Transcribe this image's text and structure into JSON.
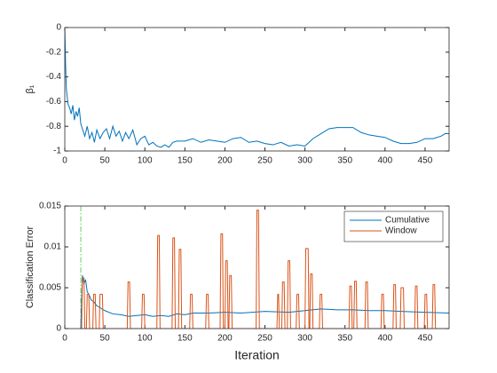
{
  "chart_data": [
    {
      "type": "line",
      "ylabel": "β₁",
      "color": "#0072bd",
      "x": [
        0,
        1,
        2,
        4,
        6,
        8,
        10,
        12,
        14,
        16,
        18,
        20,
        22,
        25,
        28,
        31,
        34,
        37,
        40,
        44,
        48,
        52,
        56,
        60,
        64,
        68,
        72,
        76,
        80,
        85,
        90,
        95,
        100,
        105,
        110,
        115,
        120,
        125,
        130,
        135,
        140,
        150,
        160,
        170,
        180,
        190,
        200,
        210,
        220,
        230,
        240,
        250,
        260,
        270,
        280,
        290,
        300,
        310,
        320,
        330,
        340,
        350,
        360,
        370,
        380,
        390,
        400,
        410,
        420,
        430,
        440,
        450,
        460,
        470,
        475,
        480
      ],
      "values": [
        0,
        -0.3,
        -0.5,
        -0.62,
        -0.65,
        -0.7,
        -0.63,
        -0.75,
        -0.68,
        -0.72,
        -0.65,
        -0.78,
        -0.82,
        -0.88,
        -0.8,
        -0.9,
        -0.85,
        -0.93,
        -0.83,
        -0.9,
        -0.85,
        -0.82,
        -0.9,
        -0.8,
        -0.88,
        -0.84,
        -0.92,
        -0.85,
        -0.9,
        -0.83,
        -0.95,
        -0.9,
        -0.88,
        -0.95,
        -0.93,
        -0.96,
        -0.97,
        -0.95,
        -0.97,
        -0.93,
        -0.92,
        -0.92,
        -0.9,
        -0.93,
        -0.91,
        -0.92,
        -0.93,
        -0.9,
        -0.89,
        -0.93,
        -0.92,
        -0.94,
        -0.95,
        -0.93,
        -0.96,
        -0.95,
        -0.96,
        -0.9,
        -0.86,
        -0.82,
        -0.81,
        -0.81,
        -0.81,
        -0.85,
        -0.87,
        -0.88,
        -0.89,
        -0.92,
        -0.94,
        -0.94,
        -0.93,
        -0.9,
        -0.9,
        -0.88,
        -0.86,
        -0.86
      ],
      "xlim": [
        0,
        480
      ],
      "ylim": [
        -1,
        0
      ],
      "xticks": [
        0,
        50,
        100,
        150,
        200,
        250,
        300,
        350,
        400,
        450
      ],
      "yticks": [
        -1,
        -0.8,
        -0.6,
        -0.4,
        -0.2,
        0
      ]
    },
    {
      "type": "line",
      "xlabel": "Iteration",
      "ylabel": "Classification Error",
      "xlim": [
        0,
        480
      ],
      "ylim": [
        0,
        0.015
      ],
      "xticks": [
        0,
        50,
        100,
        150,
        200,
        250,
        300,
        350,
        400,
        450
      ],
      "yticks": [
        0,
        0.005,
        0.01,
        0.015
      ],
      "vline": 20,
      "vline_color": "#5fd35f",
      "legend": "northeast",
      "series": [
        {
          "name": "Cumulative",
          "color": "#0072bd",
          "x": [
            20,
            22,
            24,
            26,
            28,
            30,
            33,
            36,
            40,
            45,
            50,
            60,
            70,
            80,
            90,
            100,
            110,
            120,
            130,
            140,
            150,
            160,
            180,
            200,
            220,
            250,
            280,
            300,
            320,
            340,
            360,
            380,
            400,
            420,
            450,
            480
          ],
          "values": [
            0,
            0.0065,
            0.0055,
            0.006,
            0.0045,
            0.0042,
            0.0035,
            0.0033,
            0.0028,
            0.0025,
            0.0022,
            0.0018,
            0.0017,
            0.0015,
            0.0016,
            0.0017,
            0.0015,
            0.0016,
            0.0015,
            0.0018,
            0.0017,
            0.0019,
            0.0019,
            0.002,
            0.0019,
            0.0021,
            0.002,
            0.0022,
            0.0024,
            0.0023,
            0.0023,
            0.0022,
            0.0022,
            0.0021,
            0.002,
            0.0019
          ]
        },
        {
          "name": "Window",
          "color": "#d95319",
          "x": [
            20,
            21,
            22,
            24,
            25,
            27,
            28,
            30,
            31,
            35,
            36,
            38,
            39,
            43,
            44,
            47,
            48,
            78,
            79,
            81,
            82,
            96,
            97,
            99,
            100,
            115,
            116,
            118,
            119,
            134,
            135,
            137,
            138,
            142,
            143,
            145,
            146,
            156,
            157,
            159,
            160,
            176,
            177,
            179,
            180,
            194,
            195,
            197,
            198,
            200,
            201,
            203,
            204,
            205,
            206,
            208,
            209,
            239,
            240,
            242,
            243,
            265,
            266,
            267,
            268,
            271,
            272,
            274,
            275,
            278,
            279,
            281,
            282,
            289,
            290,
            292,
            293,
            300,
            301,
            304,
            305,
            306,
            307,
            309,
            310,
            318,
            319,
            321,
            322,
            355,
            356,
            358,
            359,
            361,
            362,
            364,
            365,
            375,
            376,
            378,
            379,
            395,
            396,
            398,
            399,
            410,
            411,
            413,
            414,
            419,
            420,
            423,
            424,
            437,
            438,
            440,
            441,
            449,
            450,
            452,
            453,
            459,
            460,
            462,
            463,
            480
          ],
          "values": [
            0,
            0,
            0.0062,
            0.0062,
            0,
            0,
            0.0042,
            0.0042,
            0,
            0,
            0.0042,
            0.0042,
            0,
            0,
            0.0042,
            0.0042,
            0,
            0,
            0.0057,
            0.0057,
            0,
            0,
            0.0042,
            0.0042,
            0,
            0,
            0.0114,
            0.0114,
            0,
            0,
            0.0111,
            0.0111,
            0,
            0,
            0.0097,
            0.0097,
            0,
            0,
            0.0042,
            0.0042,
            0,
            0,
            0.0042,
            0.0042,
            0,
            0,
            0.0116,
            0.0116,
            0,
            0,
            0.0083,
            0.0083,
            0,
            0,
            0.0065,
            0.0065,
            0,
            0,
            0.0145,
            0.0145,
            0,
            0,
            0.0042,
            0.0042,
            0,
            0,
            0.0057,
            0.0057,
            0,
            0,
            0.0083,
            0.0083,
            0,
            0,
            0.0042,
            0.0042,
            0,
            0,
            0.0098,
            0.0098,
            0,
            0,
            0.0067,
            0.0067,
            0,
            0,
            0.0042,
            0.0042,
            0,
            0,
            0.0052,
            0.0052,
            0,
            0,
            0.0058,
            0.0058,
            0,
            0,
            0.0057,
            0.0057,
            0,
            0,
            0.0042,
            0.0042,
            0,
            0,
            0.0054,
            0.0054,
            0,
            0,
            0.005,
            0.005,
            0,
            0,
            0.0052,
            0.0052,
            0,
            0,
            0.0042,
            0.0042,
            0,
            0,
            0.0054,
            0.0054,
            0,
            0
          ]
        }
      ]
    }
  ]
}
